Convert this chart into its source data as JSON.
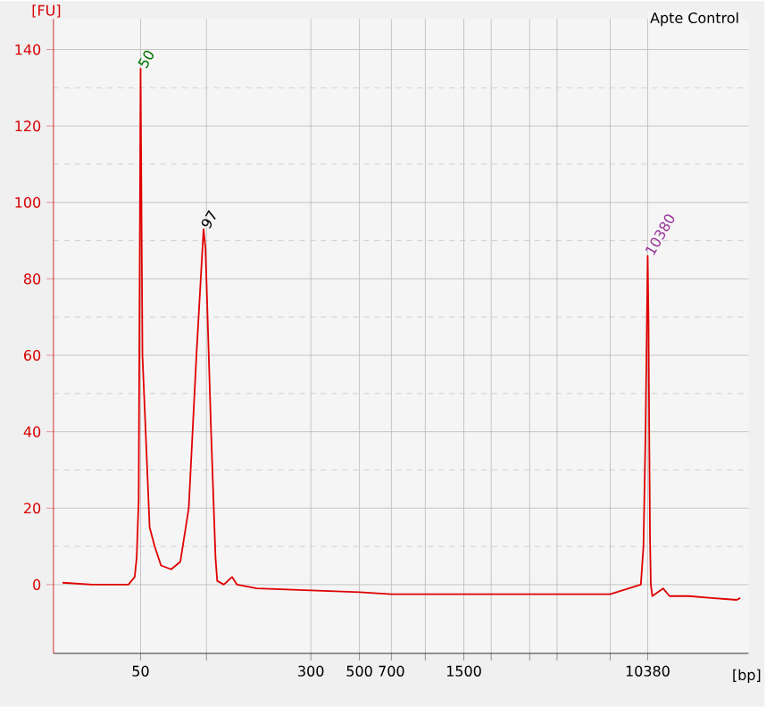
{
  "chart_data": {
    "type": "line",
    "title": "Apte Control",
    "xlabel": "[bp]",
    "ylabel": "[FU]",
    "x": [
      22,
      30,
      36,
      44,
      47,
      48,
      49,
      50,
      51,
      55,
      58,
      62,
      69,
      76,
      83,
      90,
      97,
      99,
      105,
      110,
      112,
      120,
      131,
      138,
      170,
      300,
      500,
      700,
      1000,
      1500,
      3000,
      7000,
      9660,
      9930,
      10150,
      10380,
      10470,
      10550,
      10640,
      10730,
      10900,
      12200,
      13070,
      16000,
      20300,
      26500,
      27500
    ],
    "series": [
      {
        "color": "#e00000",
        "values": [
          0.5,
          0,
          0,
          0,
          2,
          7,
          22,
          135,
          60,
          15,
          10,
          5,
          4,
          6,
          20,
          60,
          93,
          88,
          40,
          7,
          1,
          0,
          2,
          0,
          -1,
          -1.5,
          -2,
          -2.5,
          -2.5,
          -2.5,
          -2.5,
          -2.5,
          0,
          10,
          40,
          86,
          70,
          40,
          12,
          0,
          -3,
          -1,
          -3,
          -3,
          -3.5,
          -4,
          -3.5
        ]
      }
    ],
    "log": "x",
    "xlim": [
      20,
      30000
    ],
    "xticks": [
      50,
      {
        "value": 100,
        "label": null
      },
      300,
      500,
      700,
      {
        "value": 1000,
        "label": null
      },
      1500,
      {
        "value": 2000,
        "label": null
      },
      {
        "value": 3000,
        "label": null
      },
      {
        "value": 4000,
        "label": null
      },
      {
        "value": 7000,
        "label": null
      },
      10380
    ],
    "ylim": [
      -18,
      148
    ],
    "yticks": [
      0,
      20,
      40,
      60,
      80,
      100,
      120,
      140
    ],
    "grid": true,
    "annotations": [
      {
        "text": "50",
        "x": 50,
        "y": 135
      },
      {
        "text": "97",
        "x": 97,
        "y": 93
      },
      {
        "text": "10380",
        "x": 10380,
        "y": 86
      }
    ]
  }
}
